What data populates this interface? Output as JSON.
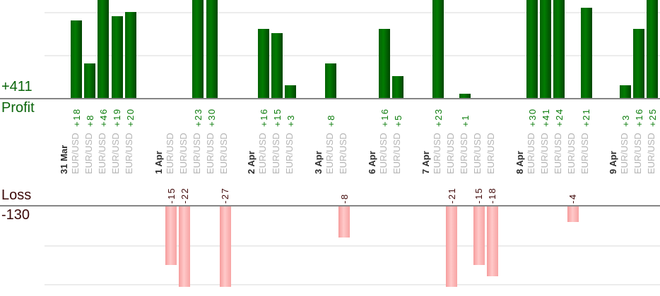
{
  "chart_data": {
    "type": "bar",
    "title": "",
    "orientation": "vertical-grouped-by-date",
    "legend_position": "none",
    "grid": true,
    "panels": {
      "profit": {
        "total": "+411",
        "label": "Profit",
        "bar_color": "#027c02",
        "text_color": "#0a650a",
        "value_text_color": "#0c7d0c",
        "gridline_interval": 10
      },
      "loss": {
        "total": "-130",
        "label": "Loss",
        "bar_color": "#f7a3a3",
        "text_color": "#3a0707",
        "value_text_color": "#400808",
        "gridline_interval": 10
      }
    },
    "axis_symbol_color": "#b4b4b4",
    "axis_date_color": "#2e2e2e",
    "groups": [
      {
        "date": "31 Mar",
        "trades": [
          {
            "symbol": "EUR/USD",
            "value": 18
          },
          {
            "symbol": "EUR/USD",
            "value": 8
          },
          {
            "symbol": "EUR/USD",
            "value": 46
          },
          {
            "symbol": "EUR/USD",
            "value": 19
          },
          {
            "symbol": "EUR/USD",
            "value": 20
          }
        ]
      },
      {
        "date": "1 Apr",
        "trades": [
          {
            "symbol": "EUR/USD",
            "value": -15
          },
          {
            "symbol": "EUR/USD",
            "value": -22
          },
          {
            "symbol": "EUR/USD",
            "value": 23
          },
          {
            "symbol": "EUR/USD",
            "value": 30
          },
          {
            "symbol": "EUR/USD",
            "value": -27
          }
        ]
      },
      {
        "date": "2 Apr",
        "trades": [
          {
            "symbol": "EUR/USD",
            "value": 16
          },
          {
            "symbol": "EUR/USD",
            "value": 15
          },
          {
            "symbol": "EUR/USD",
            "value": 3
          }
        ]
      },
      {
        "date": "3 Apr",
        "trades": [
          {
            "symbol": "EUR/USD",
            "value": 8
          },
          {
            "symbol": "EUR/USD",
            "value": -8
          }
        ]
      },
      {
        "date": "6 Apr",
        "trades": [
          {
            "symbol": "EUR/USD",
            "value": 16
          },
          {
            "symbol": "EUR/USD",
            "value": 5
          }
        ]
      },
      {
        "date": "7 Apr",
        "trades": [
          {
            "symbol": "EUR/USD",
            "value": 23
          },
          {
            "symbol": "EUR/USD",
            "value": -21
          },
          {
            "symbol": "EUR/USD",
            "value": 1
          },
          {
            "symbol": "EUR/USD",
            "value": -15
          },
          {
            "symbol": "EUR/USD",
            "value": -18
          }
        ]
      },
      {
        "date": "8 Apr",
        "trades": [
          {
            "symbol": "EUR/USD",
            "value": 30
          },
          {
            "symbol": "EUR/USD",
            "value": 41
          },
          {
            "symbol": "EUR/USD",
            "value": 24
          },
          {
            "symbol": "EUR/USD",
            "value": -4
          },
          {
            "symbol": "EUR/USD",
            "value": 21
          }
        ]
      },
      {
        "date": "9 Apr",
        "trades": [
          {
            "symbol": "EUR/USD",
            "value": 3
          },
          {
            "symbol": "EUR/USD",
            "value": 16
          },
          {
            "symbol": "EUR/USD",
            "value": 25
          }
        ]
      }
    ]
  }
}
